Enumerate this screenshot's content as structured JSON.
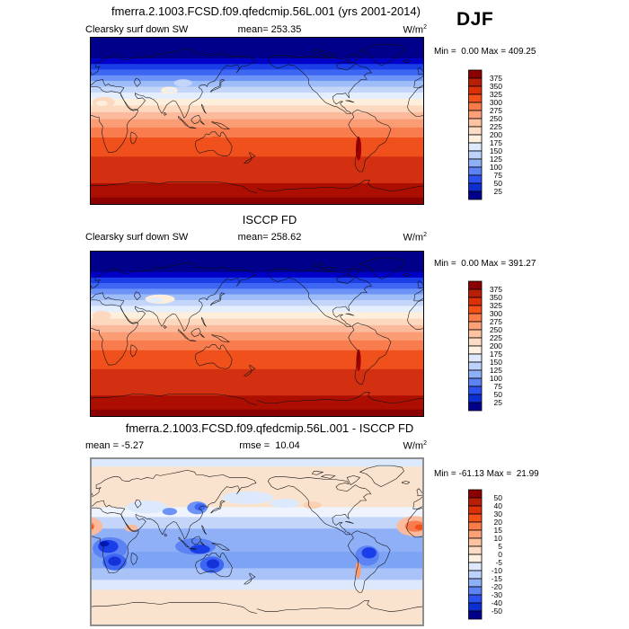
{
  "season_label": "DJF",
  "panels": [
    {
      "title": "fmerra.2.1003.FCSD.f09.qfedcmip.56L.001 (yrs 2001-2014)",
      "sub_left": "Clearsky surf down SW",
      "sub_mid": "mean= 253.35",
      "units_base": "W/m",
      "units_exp": "2",
      "minmax": "Min =  0.00 Max = 409.25",
      "colorbar_ticks": [
        "375",
        "350",
        "325",
        "300",
        "275",
        "250",
        "225",
        "200",
        "175",
        "150",
        "125",
        "100",
        "75",
        "50",
        "25"
      ]
    },
    {
      "title": "ISCCP FD",
      "sub_left": "Clearsky surf down SW",
      "sub_mid": "mean= 258.62",
      "units_base": "W/m",
      "units_exp": "2",
      "minmax": "Min =  0.00 Max = 391.27",
      "colorbar_ticks": [
        "375",
        "350",
        "325",
        "300",
        "275",
        "250",
        "225",
        "200",
        "175",
        "150",
        "125",
        "100",
        "75",
        "50",
        "25"
      ]
    },
    {
      "title": "fmerra.2.1003.FCSD.f09.qfedcmip.56L.001 - ISCCP FD",
      "sub_left": "mean = -5.27",
      "sub_mid": "rmse =  10.04",
      "units_base": "W/m",
      "units_exp": "2",
      "minmax": "Min = -61.13 Max =  21.99",
      "colorbar_ticks": [
        "50",
        "40",
        "30",
        "20",
        "15",
        "10",
        "5",
        "0",
        "-5",
        "-10",
        "-15",
        "-20",
        "-30",
        "-40",
        "-50"
      ]
    }
  ],
  "palette_top_to_bottom": [
    "#8B0000",
    "#B81F08",
    "#DC3008",
    "#F4511A",
    "#F97B49",
    "#FBA077",
    "#FCC3A2",
    "#FCDCC5",
    "#FDF0DE",
    "#DDE9FC",
    "#BDD2FA",
    "#8FB0F7",
    "#5C82F3",
    "#2B52EE",
    "#0D2FD1",
    "#00008B"
  ],
  "chart_data": [
    {
      "type": "heatmap",
      "kind": "global map, equirectangular, lon 0-360E (Pacific-centered), lat -90..90",
      "title": "fmerra.2.1003.FCSD.f09.qfedcmip.56L.001 (yrs 2001-2014)",
      "variable": "Clearsky surf down SW",
      "season": "DJF",
      "units": "W/m2",
      "mean": 253.35,
      "min": 0.0,
      "max": 409.25,
      "contour_levels": [
        25,
        50,
        75,
        100,
        125,
        150,
        175,
        200,
        225,
        250,
        275,
        300,
        325,
        350,
        375
      ],
      "palette_low_to_high": [
        "#00008B",
        "#0D2FD1",
        "#2B52EE",
        "#5C82F3",
        "#8FB0F7",
        "#BDD2FA",
        "#DDE9FC",
        "#FDF0DE",
        "#FCDCC5",
        "#FCC3A2",
        "#FBA077",
        "#F97B49",
        "#F4511A",
        "#DC3008",
        "#B81F08",
        "#8B0000"
      ],
      "zonal_mean_estimate": {
        "lat": [
          90,
          70,
          60,
          50,
          40,
          30,
          20,
          10,
          0,
          -10,
          -20,
          -30,
          -40,
          -50,
          -60,
          -70,
          -80,
          -90
        ],
        "value": [
          0,
          10,
          55,
          110,
          165,
          215,
          255,
          285,
          305,
          325,
          340,
          348,
          345,
          340,
          335,
          360,
          390,
          400
        ]
      },
      "features": [
        "polar night (0 W/m2, navy) north of ~67N",
        "values increase southward to >375 W/m2 over Antarctica",
        "pale high blob over Tibet/central Asia",
        "pale blob over Sahara/Arabia",
        "dark-red Andes stripe"
      ]
    },
    {
      "type": "heatmap",
      "kind": "global map, equirectangular, lon 0-360E (Pacific-centered), lat -90..90",
      "title": "ISCCP FD",
      "variable": "Clearsky surf down SW",
      "season": "DJF",
      "units": "W/m2",
      "mean": 258.62,
      "min": 0.0,
      "max": 391.27,
      "contour_levels": [
        25,
        50,
        75,
        100,
        125,
        150,
        175,
        200,
        225,
        250,
        275,
        300,
        325,
        350,
        375
      ],
      "palette_low_to_high": [
        "#00008B",
        "#0D2FD1",
        "#2B52EE",
        "#5C82F3",
        "#8FB0F7",
        "#BDD2FA",
        "#DDE9FC",
        "#FDF0DE",
        "#FCDCC5",
        "#FCC3A2",
        "#FBA077",
        "#F97B49",
        "#F4511A",
        "#DC3008",
        "#B81F08",
        "#8B0000"
      ],
      "zonal_mean_estimate": {
        "lat": [
          90,
          70,
          60,
          50,
          40,
          30,
          20,
          10,
          0,
          -10,
          -20,
          -30,
          -40,
          -50,
          -60,
          -70,
          -80,
          -90
        ],
        "value": [
          0,
          10,
          60,
          115,
          170,
          220,
          260,
          290,
          310,
          330,
          345,
          350,
          348,
          342,
          338,
          360,
          385,
          395
        ]
      },
      "features": [
        "smoother, more zonal bands than model panel",
        "dark-red Andes stripe",
        "pale band over central Asia"
      ]
    },
    {
      "type": "heatmap",
      "kind": "global difference map (model minus ISCCP FD), equirectangular, lon 0-360E, lat -90..90",
      "title": "fmerra.2.1003.FCSD.f09.qfedcmip.56L.001 - ISCCP FD",
      "season": "DJF",
      "units": "W/m2",
      "mean": -5.27,
      "rmse": 10.04,
      "min": -61.13,
      "max": 21.99,
      "contour_levels": [
        -50,
        -40,
        -30,
        -20,
        -15,
        -10,
        -5,
        0,
        5,
        10,
        15,
        20,
        30,
        40,
        50
      ],
      "palette_low_to_high": [
        "#00008B",
        "#0D2FD1",
        "#2B52EE",
        "#5C82F3",
        "#8FB0F7",
        "#BDD2FA",
        "#DDE9FC",
        "#FDF0DE",
        "#FCDCC5",
        "#FCC3A2",
        "#FBA077",
        "#F97B49",
        "#F4511A",
        "#DC3008",
        "#B81F08",
        "#8B0000"
      ],
      "features": [
        "weak positive bias (pale orange, 0..+5) over NH extratropics and Antarctic zone",
        "broad negative bias (-5..-15, blue band) across tropics and SH midlatitudes",
        "strong negative centers (< -30) over central/southern Africa, Maritime Continent, Australia, tropical South America and NE China",
        "positive blobs (+10..+20) over West Africa/Sahara edge and small Andes stripe"
      ]
    }
  ]
}
